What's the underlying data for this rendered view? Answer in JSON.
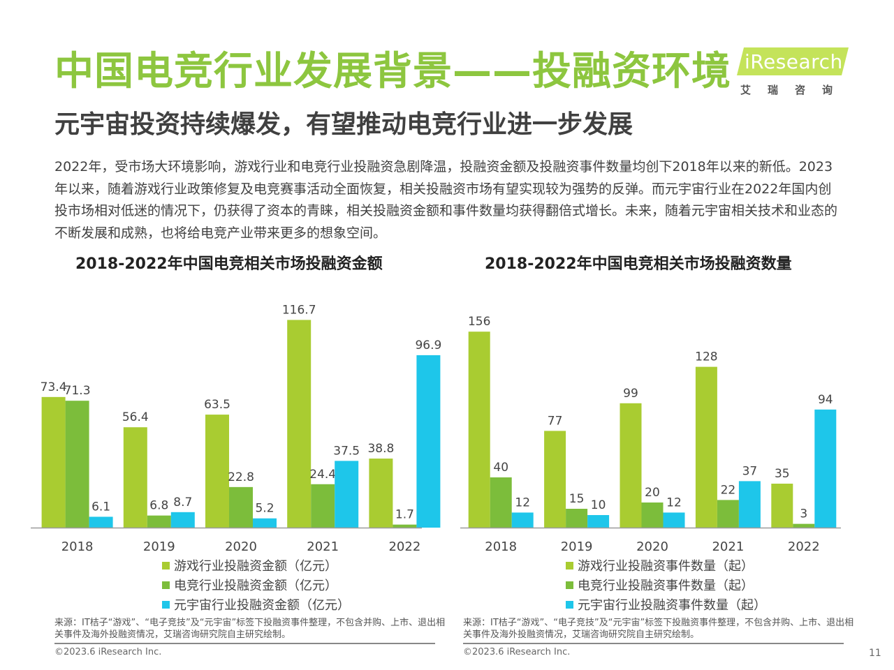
{
  "header": {
    "title": "中国电竞行业发展背景——投融资环境",
    "subtitle": "元宇宙投资持续爆发，有望推动电竞行业进一步发展"
  },
  "logo": {
    "text": "iResearch",
    "subtext": "艾瑞咨询"
  },
  "intro": "2022年，受市场大环境影响，游戏行业和电竞行业投融资急剧降温，投融资金额及投融资事件数量均创下2018年以来的新低。2023年以来，随着游戏行业政策修复及电竞赛事活动全面恢复，相关投融资市场有望实现较为强势的反弹。而元宇宙行业在2022年国内创投市场相对低迷的情况下，仍获得了资本的青睐，相关投融资金额和事件数量均获得翻倍式增长。未来，随着元宇宙相关技术和业态的不断发展和成熟，也将给电竞产业带来更多的想象空间。",
  "colors": {
    "title": "#8dc63f",
    "series_game": "#a9cc31",
    "series_esports": "#7cbd3b",
    "series_metaverse": "#1ec6ea",
    "logo": "#c4e35a"
  },
  "chart_data": [
    {
      "type": "bar",
      "title": "2018-2022年中国电竞相关市场投融资金额",
      "categories": [
        "2018",
        "2019",
        "2020",
        "2021",
        "2022"
      ],
      "series": [
        {
          "name": "游戏行业投融资金额（亿元）",
          "values": [
            73.4,
            56.4,
            63.5,
            116.7,
            38.8
          ],
          "labels": [
            "73.4",
            "56.4",
            "63.5",
            "116.7",
            "38.8"
          ]
        },
        {
          "name": "电竞行业投融资金额（亿元）",
          "values": [
            71.3,
            6.8,
            22.8,
            24.4,
            1.7
          ],
          "labels": [
            "71.3",
            "6.8",
            "22.8",
            "24.4",
            "1.7"
          ]
        },
        {
          "name": "元宇宙行业投融资金额（亿元）",
          "values": [
            6.1,
            8.7,
            5.2,
            37.5,
            96.9
          ],
          "labels": [
            "6.1",
            "8.7",
            "5.2",
            "37.5",
            "96.9"
          ]
        }
      ],
      "ylim": [
        0,
        120
      ],
      "grid": false,
      "legend": "bottom",
      "source": "来源：IT桔子“游戏”、“电子竞技”及“元宇宙”标签下投融资事件整理，不包含并购、上市、退出相关事件及海外投融资情况，艾瑞咨询研究院自主研究绘制。",
      "copyright": "©2023.6 iResearch Inc."
    },
    {
      "type": "bar",
      "title": "2018-2022年中国电竞相关市场投融资数量",
      "categories": [
        "2018",
        "2019",
        "2020",
        "2021",
        "2022"
      ],
      "series": [
        {
          "name": "游戏行业投融资事件数量（起）",
          "values": [
            156,
            77,
            99,
            128,
            35
          ],
          "labels": [
            "156",
            "77",
            "99",
            "128",
            "35"
          ]
        },
        {
          "name": "电竞行业投融资事件数量（起）",
          "values": [
            40,
            15,
            20,
            22,
            3
          ],
          "labels": [
            "40",
            "15",
            "20",
            "22",
            "3"
          ]
        },
        {
          "name": "元宇宙行业投融资事件数量（起）",
          "values": [
            12,
            10,
            12,
            37,
            94
          ],
          "labels": [
            "12",
            "10",
            "12",
            "37",
            "94"
          ]
        }
      ],
      "ylim": [
        0,
        160
      ],
      "grid": false,
      "legend": "bottom",
      "source": "来源：IT桔子“游戏”、“电子竞技”及“元宇宙”标签下投融资事件整理，不包含并购、上市、退出相关事件及海外投融资情况，艾瑞咨询研究院自主研究绘制。",
      "copyright": "©2023.6 iResearch Inc."
    }
  ],
  "page_number": "11"
}
